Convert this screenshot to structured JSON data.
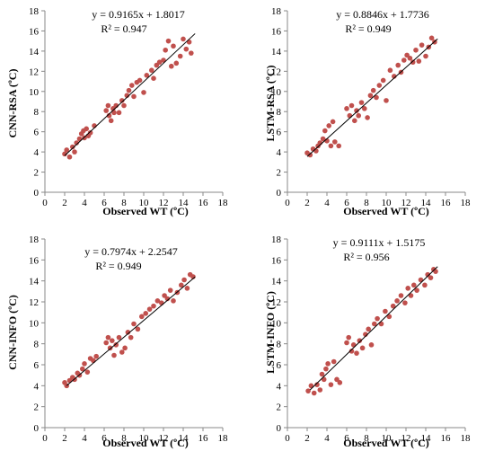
{
  "chart_data": [
    {
      "type": "scatter",
      "ylabel": "CNN-RSA (ºC)",
      "xlabel": "Observed WT (ºC)",
      "xlim": [
        0,
        18
      ],
      "ylim": [
        0,
        18
      ],
      "xticks": [
        0,
        2,
        4,
        6,
        8,
        10,
        12,
        14,
        16,
        18
      ],
      "yticks": [
        0,
        2,
        4,
        6,
        8,
        10,
        12,
        14,
        16,
        18
      ],
      "equation": "y = 0.9165x + 1.8017",
      "r2": "R² = 0.947",
      "trendline": {
        "slope": 0.9165,
        "intercept": 1.8017,
        "x_range": [
          2,
          15.2
        ]
      },
      "marker_color": "#c0504d",
      "line_color": "#000000",
      "x": [
        2.0,
        2.2,
        2.5,
        2.8,
        3.0,
        3.2,
        3.5,
        3.7,
        3.9,
        4.0,
        4.2,
        4.4,
        4.6,
        5.0,
        6.2,
        6.4,
        6.5,
        6.7,
        6.9,
        7.0,
        7.2,
        7.5,
        7.8,
        8.0,
        8.3,
        8.5,
        8.8,
        9.0,
        9.3,
        9.6,
        10.0,
        10.3,
        10.8,
        11.0,
        11.3,
        11.6,
        12.0,
        12.2,
        12.5,
        12.8,
        13.0,
        13.3,
        13.7,
        14.0,
        14.3,
        14.6,
        14.8
      ],
      "y": [
        3.8,
        4.2,
        3.5,
        4.5,
        4.0,
        4.9,
        5.3,
        5.8,
        6.1,
        5.4,
        6.3,
        5.6,
        5.9,
        6.6,
        8.1,
        8.6,
        7.6,
        7.1,
        8.3,
        7.9,
        8.6,
        7.9,
        9.1,
        8.6,
        9.6,
        10.1,
        10.6,
        9.5,
        10.9,
        11.1,
        9.9,
        11.6,
        12.1,
        11.3,
        12.6,
        12.9,
        13.1,
        14.1,
        15.0,
        12.5,
        14.5,
        12.8,
        13.5,
        15.2,
        14.2,
        14.9,
        13.8
      ]
    },
    {
      "type": "scatter",
      "ylabel": "LSTM-RSA (ºC)",
      "xlabel": "Observed WT (ºC)",
      "xlim": [
        0,
        18
      ],
      "ylim": [
        0,
        18
      ],
      "xticks": [
        0,
        2,
        4,
        6,
        8,
        10,
        12,
        14,
        16,
        18
      ],
      "yticks": [
        0,
        2,
        4,
        6,
        8,
        10,
        12,
        14,
        16,
        18
      ],
      "equation": "y = 0.8846x + 1.7736",
      "r2": "R² = 0.949",
      "trendline": {
        "slope": 0.8846,
        "intercept": 1.7736,
        "x_range": [
          2,
          15.2
        ]
      },
      "marker_color": "#c0504d",
      "line_color": "#000000",
      "x": [
        2.0,
        2.3,
        2.6,
        2.9,
        3.1,
        3.3,
        3.6,
        3.8,
        4.0,
        4.2,
        4.4,
        4.6,
        4.8,
        5.2,
        6.0,
        6.3,
        6.5,
        6.8,
        7.0,
        7.2,
        7.5,
        7.8,
        8.1,
        8.4,
        8.7,
        9.0,
        9.3,
        9.7,
        10.0,
        10.4,
        10.8,
        11.2,
        11.5,
        11.8,
        12.1,
        12.4,
        12.7,
        13.0,
        13.3,
        13.6,
        14.0,
        14.3,
        14.6,
        14.9
      ],
      "y": [
        3.9,
        3.7,
        4.3,
        4.1,
        4.6,
        4.9,
        5.3,
        6.1,
        5.1,
        6.6,
        4.6,
        7.0,
        5.0,
        4.6,
        8.3,
        7.6,
        8.6,
        7.1,
        8.1,
        7.6,
        8.9,
        8.3,
        7.4,
        9.6,
        10.1,
        9.4,
        10.6,
        11.1,
        9.1,
        12.1,
        11.5,
        12.6,
        11.9,
        13.1,
        13.6,
        13.3,
        12.9,
        14.1,
        13.0,
        14.6,
        13.5,
        14.4,
        15.3,
        14.9
      ]
    },
    {
      "type": "scatter",
      "ylabel": "CNN-INFO (ºC)",
      "xlabel": "Observed WT (ºC)",
      "xlim": [
        0,
        18
      ],
      "ylim": [
        0,
        18
      ],
      "xticks": [
        0,
        2,
        4,
        6,
        8,
        10,
        12,
        14,
        16,
        18
      ],
      "yticks": [
        0,
        2,
        4,
        6,
        8,
        10,
        12,
        14,
        16,
        18
      ],
      "equation": "y = 0.7974x + 2.2547",
      "r2": "R² = 0.949",
      "trendline": {
        "slope": 0.7974,
        "intercept": 2.2547,
        "x_range": [
          2.2,
          15.2
        ]
      },
      "marker_color": "#c0504d",
      "line_color": "#000000",
      "x": [
        2.0,
        2.2,
        2.5,
        2.8,
        3.0,
        3.3,
        3.5,
        3.8,
        4.0,
        4.3,
        4.6,
        4.9,
        5.2,
        6.2,
        6.4,
        6.6,
        6.8,
        7.0,
        7.2,
        7.5,
        7.8,
        8.1,
        8.4,
        8.7,
        9.0,
        9.4,
        9.8,
        10.2,
        10.6,
        11.0,
        11.4,
        11.8,
        12.1,
        12.4,
        12.7,
        13.0,
        13.4,
        13.8,
        14.1,
        14.4,
        14.7,
        15.0
      ],
      "y": [
        4.3,
        4.0,
        4.5,
        4.8,
        4.6,
        5.2,
        5.0,
        5.6,
        6.1,
        5.3,
        6.6,
        6.4,
        6.8,
        8.1,
        8.6,
        7.6,
        8.3,
        6.9,
        7.9,
        8.6,
        7.2,
        7.6,
        9.1,
        8.6,
        9.9,
        9.4,
        10.6,
        10.9,
        11.3,
        11.6,
        12.1,
        11.9,
        12.6,
        12.3,
        13.1,
        12.1,
        12.9,
        13.6,
        14.1,
        13.3,
        14.6,
        14.4
      ]
    },
    {
      "type": "scatter",
      "ylabel": "LSTM-INFO (ºC)",
      "xlabel": "Observed WT (ºC)",
      "xlim": [
        0,
        18
      ],
      "ylim": [
        0,
        18
      ],
      "xticks": [
        0,
        2,
        4,
        6,
        8,
        10,
        12,
        14,
        16,
        18
      ],
      "yticks": [
        0,
        2,
        4,
        6,
        8,
        10,
        12,
        14,
        16,
        18
      ],
      "equation": "y = 0.9111x + 1.5175",
      "r2": "R² = 0.956",
      "trendline": {
        "slope": 0.9111,
        "intercept": 1.5175,
        "x_range": [
          2.3,
          15.2
        ]
      },
      "marker_color": "#c0504d",
      "line_color": "#000000",
      "x": [
        2.1,
        2.4,
        2.7,
        3.0,
        3.3,
        3.5,
        3.7,
        3.9,
        4.1,
        4.4,
        4.7,
        5.0,
        5.3,
        6.0,
        6.2,
        6.5,
        6.7,
        7.0,
        7.3,
        7.6,
        7.9,
        8.2,
        8.5,
        8.8,
        9.1,
        9.5,
        9.9,
        10.3,
        10.7,
        11.1,
        11.5,
        11.9,
        12.2,
        12.5,
        12.8,
        13.1,
        13.5,
        13.9,
        14.2,
        14.5,
        14.8,
        15.0
      ],
      "y": [
        3.5,
        4.0,
        3.3,
        4.1,
        3.6,
        5.1,
        4.6,
        5.6,
        6.1,
        4.1,
        6.3,
        4.6,
        4.3,
        8.1,
        8.6,
        7.3,
        7.9,
        7.1,
        8.3,
        7.6,
        8.9,
        9.4,
        7.9,
        9.9,
        10.4,
        9.9,
        11.1,
        10.6,
        11.6,
        12.1,
        12.6,
        11.9,
        13.3,
        12.6,
        13.6,
        13.1,
        14.1,
        13.6,
        14.6,
        14.3,
        15.1,
        14.9
      ]
    }
  ]
}
